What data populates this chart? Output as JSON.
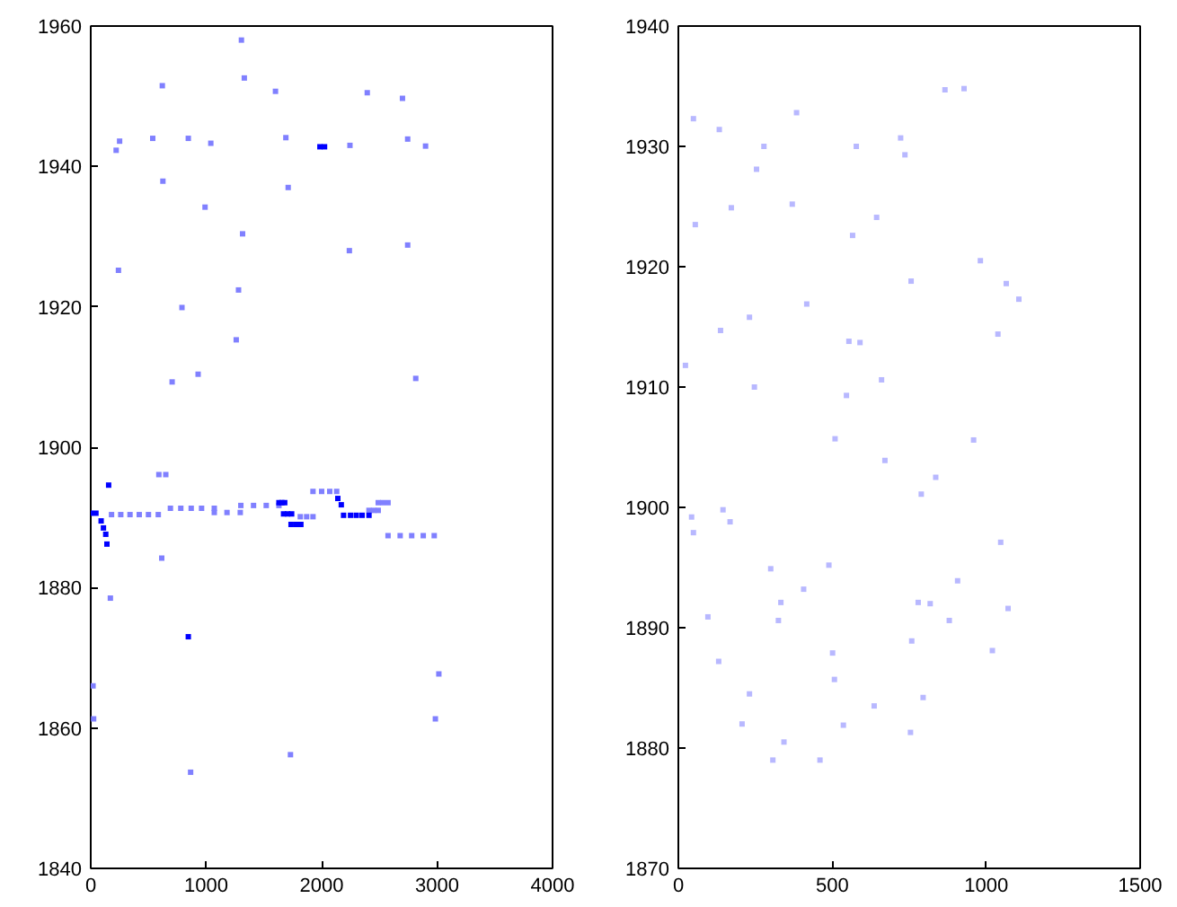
{
  "chart_data": [
    {
      "type": "scatter",
      "marker": "square",
      "xlim": [
        0,
        4000
      ],
      "ylim": [
        1840,
        1960
      ],
      "xticks": [
        0,
        1000,
        2000,
        3000,
        4000
      ],
      "yticks": [
        1840,
        1860,
        1880,
        1900,
        1920,
        1940,
        1960
      ],
      "series": [
        {
          "color": "#0000ff",
          "x": [
            0,
            45,
            90,
            110,
            130,
            140,
            155,
            1630,
            1655,
            1680,
            1670,
            1705,
            1740,
            1735,
            1778,
            1820,
            2140,
            2170,
            2190,
            2250,
            2300,
            2350,
            2410,
            1985,
            2025,
            845
          ],
          "values": [
            1890.6,
            1890.6,
            1889.5,
            1888.5,
            1887.6,
            1886.2,
            1894.6,
            1892.1,
            1892.1,
            1892.1,
            1890.5,
            1890.5,
            1890.5,
            1889.0,
            1889.0,
            1889.0,
            1892.7,
            1891.8,
            1890.3,
            1890.3,
            1890.3,
            1890.3,
            1890.3,
            1942.8,
            1942.8,
            1873
          ]
        },
        {
          "color": "#8080ff",
          "x": [
            180,
            260,
            340,
            420,
            500,
            585,
            590,
            650,
            690,
            780,
            870,
            960,
            1070,
            1070,
            1180,
            1295,
            1300,
            1410,
            1520,
            1630,
            1815,
            1870,
            1925,
            1925,
            2000,
            2070,
            2130,
            2410,
            2450,
            2490,
            2490,
            2530,
            2575,
            2575,
            2680,
            2780,
            2880,
            2975,
            615,
            250,
            537,
            845,
            1040,
            1690,
            2245,
            2745,
            2900,
            1330,
            1710,
            1280,
            1260,
            2815,
            620,
            1600,
            2395,
            2700,
            1305,
            625,
            990,
            240,
            790,
            2240,
            2745,
            705,
            930,
            1315,
            220,
            1730,
            865,
            2985,
            3015,
            170,
            25,
            20
          ],
          "values": [
            1890.4,
            1890.4,
            1890.4,
            1890.4,
            1890.4,
            1890.4,
            1896.1,
            1896.1,
            1891.3,
            1891.3,
            1891.3,
            1891.3,
            1891.3,
            1890.7,
            1890.7,
            1890.7,
            1891.7,
            1891.7,
            1891.7,
            1891.7,
            1890.1,
            1890.1,
            1890.1,
            1893.7,
            1893.7,
            1893.7,
            1893.7,
            1891.0,
            1891.0,
            1891.0,
            1892.1,
            1892.1,
            1892.1,
            1887.4,
            1887.4,
            1887.4,
            1887.4,
            1887.4,
            1884.2,
            1943.6,
            1944.0,
            1944.0,
            1943.3,
            1944.1,
            1943.0,
            1943.9,
            1942.9,
            1952.6,
            1937,
            1922.4,
            1915.3,
            1909.8,
            1951.5,
            1950.7,
            1950.5,
            1949.7,
            1958,
            1937.9,
            1934.2,
            1925.2,
            1919.9,
            1928.0,
            1928.8,
            1909.3,
            1910.4,
            1930.4,
            1942.3,
            1856.2,
            1853.7,
            1861.3,
            1867.7,
            1878.5,
            1861.3,
            1866
          ]
        }
      ]
    },
    {
      "type": "scatter",
      "marker": "square",
      "xlim": [
        0,
        1500
      ],
      "ylim": [
        1870,
        1940
      ],
      "xticks": [
        0,
        500,
        1000,
        1500
      ],
      "yticks": [
        1870,
        1880,
        1890,
        1900,
        1910,
        1920,
        1930,
        1940
      ],
      "series": [
        {
          "color": "#b8b8ff",
          "x": [
            49,
            133,
            278,
            254,
            384,
            370,
            578,
            722,
            736,
            866,
            928,
            644,
            566,
            55,
            172,
            756,
            981,
            1065,
            1106,
            417,
            231,
            554,
            590,
            1038,
            247,
            546,
            660,
            137,
            23,
            43,
            49,
            145,
            168,
            300,
            407,
            489,
            333,
            325,
            96,
            131,
            231,
            207,
            307,
            460,
            343,
            536,
            636,
            754,
            795,
            758,
            501,
            507,
            779,
            818,
            880,
            907,
            1020,
            1071,
            1047,
            789,
            836,
            671,
            509,
            959
          ],
          "values": [
            1932.3,
            1931.4,
            1930,
            1928.1,
            1932.8,
            1925.2,
            1930,
            1930.7,
            1929.3,
            1934.7,
            1934.8,
            1924.1,
            1922.6,
            1923.5,
            1924.9,
            1918.8,
            1920.5,
            1918.6,
            1917.3,
            1916.9,
            1915.8,
            1913.8,
            1913.7,
            1914.4,
            1910,
            1909.3,
            1910.6,
            1914.7,
            1911.8,
            1899.2,
            1897.9,
            1899.8,
            1898.8,
            1894.9,
            1893.2,
            1895.2,
            1892.1,
            1890.6,
            1890.9,
            1887.2,
            1884.5,
            1882,
            1879,
            1879,
            1880.5,
            1881.9,
            1883.5,
            1881.3,
            1884.2,
            1888.9,
            1887.9,
            1885.7,
            1892.1,
            1892,
            1890.6,
            1893.9,
            1888.1,
            1891.6,
            1897.1,
            1901.1,
            1902.5,
            1903.9,
            1905.7,
            1905.6
          ]
        }
      ]
    }
  ]
}
